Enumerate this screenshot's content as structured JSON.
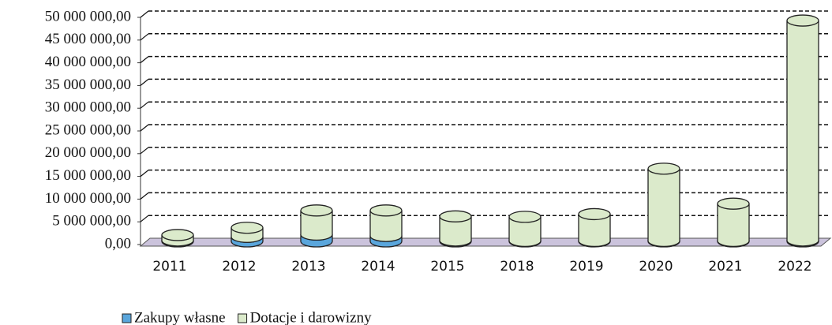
{
  "chart_data": {
    "type": "bar",
    "stacked": true,
    "categories": [
      "2011",
      "2012",
      "2013",
      "2014",
      "2015",
      "2018",
      "2019",
      "2020",
      "2021",
      "2022"
    ],
    "series": [
      {
        "name": "Zakupy własne",
        "color": "#5aa6dc",
        "values": [
          200000,
          1000000,
          1500000,
          1200000,
          200000,
          100000,
          100000,
          100000,
          100000,
          200000
        ]
      },
      {
        "name": "Dotacje i darowizny",
        "color": "#dbeacb",
        "values": [
          1200000,
          2000000,
          5300000,
          5600000,
          5300000,
          5300000,
          5900000,
          15900000,
          8200000,
          48400000
        ]
      }
    ],
    "ylim": [
      0,
      50000000
    ],
    "yticks": [
      {
        "value": 0,
        "label": "0,00"
      },
      {
        "value": 5000000,
        "label": "5 000 000,00"
      },
      {
        "value": 10000000,
        "label": "10 000 000,00"
      },
      {
        "value": 15000000,
        "label": "15 000 000,00"
      },
      {
        "value": 20000000,
        "label": "20 000 000,00"
      },
      {
        "value": 25000000,
        "label": "25 000 000,00"
      },
      {
        "value": 30000000,
        "label": "30 000 000,00"
      },
      {
        "value": 35000000,
        "label": "35 000 000,00"
      },
      {
        "value": 40000000,
        "label": "40 000 000,00"
      },
      {
        "value": 45000000,
        "label": "45 000 000,00"
      },
      {
        "value": 50000000,
        "label": "50 000 000,00"
      }
    ],
    "grid": true
  }
}
